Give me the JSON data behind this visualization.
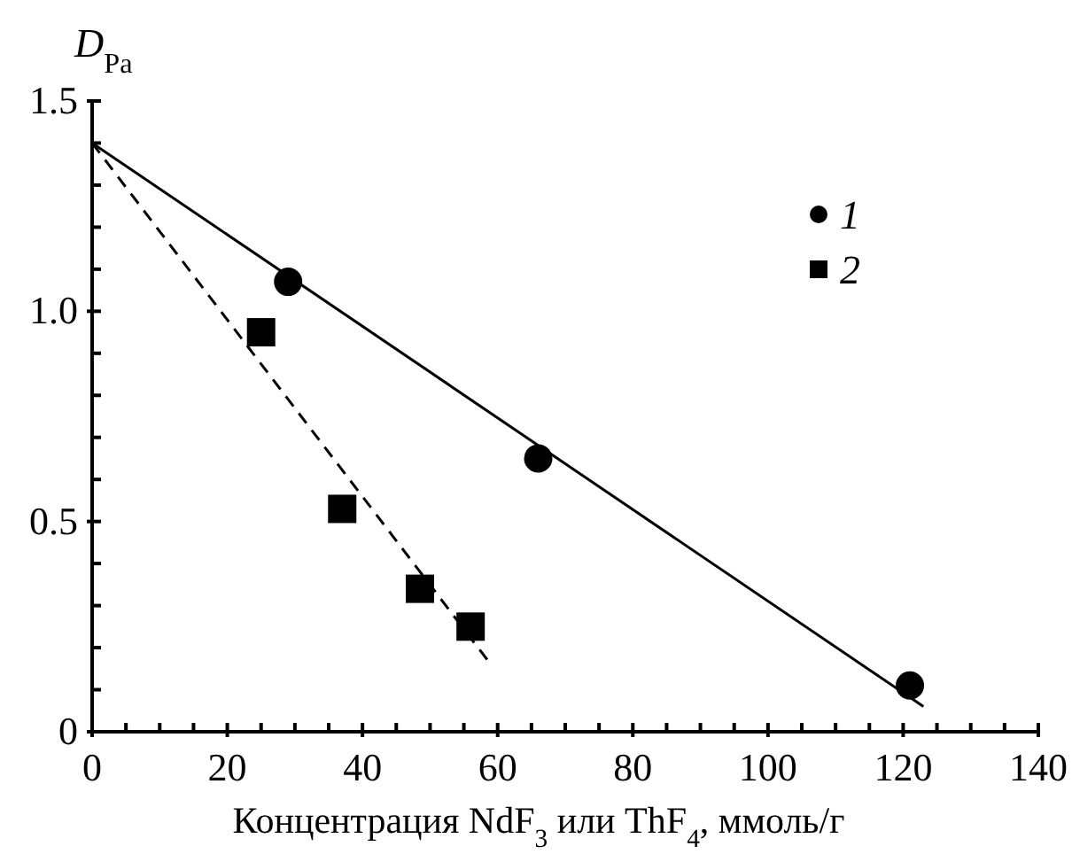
{
  "chart_data": {
    "type": "scatter",
    "ylabel": "D$_{Pa}$",
    "xlabel": "Концентрация NdF$_{3}$ или ThF$_{4}$, ммоль/г",
    "xlim": [
      0,
      140
    ],
    "ylim": [
      0,
      1.5
    ],
    "xticks": [
      0,
      {
        "value": 5,
        "label": null
      },
      {
        "value": 10,
        "label": null
      },
      {
        "value": 15,
        "label": null
      },
      20,
      {
        "value": 25,
        "label": null
      },
      {
        "value": 30,
        "label": null
      },
      {
        "value": 35,
        "label": null
      },
      40,
      {
        "value": 45,
        "label": null
      },
      {
        "value": 50,
        "label": null
      },
      {
        "value": 55,
        "label": null
      },
      60,
      {
        "value": 65,
        "label": null
      },
      {
        "value": 70,
        "label": null
      },
      {
        "value": 75,
        "label": null
      },
      80,
      {
        "value": 85,
        "label": null
      },
      {
        "value": 90,
        "label": null
      },
      {
        "value": 95,
        "label": null
      },
      100,
      {
        "value": 105,
        "label": null
      },
      {
        "value": 110,
        "label": null
      },
      {
        "value": 115,
        "label": null
      },
      120,
      {
        "value": 125,
        "label": null
      },
      {
        "value": 130,
        "label": null
      },
      {
        "value": 135,
        "label": null
      },
      140
    ],
    "yticks": [
      0,
      {
        "value": 0.1,
        "label": null
      },
      {
        "value": 0.2,
        "label": null
      },
      {
        "value": 0.3,
        "label": null
      },
      {
        "value": 0.4,
        "label": null
      },
      {
        "value": 0.5,
        "label": "0.5"
      },
      {
        "value": 0.6,
        "label": null
      },
      {
        "value": 0.7,
        "label": null
      },
      {
        "value": 0.8,
        "label": null
      },
      {
        "value": 0.9,
        "label": null
      },
      {
        "value": 1,
        "label": "1.0"
      },
      {
        "value": 1.1,
        "label": null
      },
      {
        "value": 1.2,
        "label": null
      },
      {
        "value": 1.3,
        "label": null
      },
      {
        "value": 1.4,
        "label": null
      },
      1.5
    ],
    "legend": "top right",
    "grid": false,
    "series": [
      {
        "name": "1",
        "marker": "circle",
        "color": "#000000",
        "x": [
          29,
          66,
          121
        ],
        "values": [
          1.07,
          0.65,
          0.11
        ]
      },
      {
        "name": "2",
        "marker": "square",
        "color": "#000000",
        "x": [
          25,
          37,
          48.5,
          56
        ],
        "values": [
          0.95,
          0.53,
          0.34,
          0.25
        ]
      },
      {
        "type": "line",
        "line_style": "solid",
        "color": "#000000",
        "x": [
          0,
          123
        ],
        "values": [
          1.4,
          0.06
        ]
      },
      {
        "type": "line",
        "line_style": "dashed",
        "color": "#000000",
        "x": [
          0,
          59
        ],
        "values": [
          1.4,
          0.16
        ]
      }
    ]
  }
}
